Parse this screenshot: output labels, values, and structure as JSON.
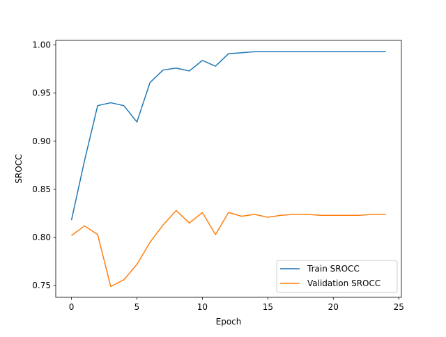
{
  "chart_data": {
    "type": "line",
    "title": "",
    "xlabel": "Epoch",
    "ylabel": "SROCC",
    "xlim": [
      -1.2,
      25.2
    ],
    "ylim": [
      0.7378,
      1.0048
    ],
    "xticks": [
      0,
      5,
      10,
      15,
      20,
      25
    ],
    "yticks": [
      0.75,
      0.8,
      0.85,
      0.9,
      0.95,
      1.0
    ],
    "xtick_labels": [
      "0",
      "5",
      "10",
      "15",
      "20",
      "25"
    ],
    "ytick_labels": [
      "0.75",
      "0.80",
      "0.85",
      "0.90",
      "0.95",
      "1.00"
    ],
    "grid": false,
    "legend_position": "lower-right",
    "x": [
      0,
      1,
      2,
      3,
      4,
      5,
      6,
      7,
      8,
      9,
      10,
      11,
      12,
      13,
      14,
      15,
      16,
      17,
      18,
      19,
      20,
      21,
      22,
      23,
      24
    ],
    "series": [
      {
        "name": "Train SROCC",
        "color": "#1f77b4",
        "values": [
          0.818,
          0.88,
          0.937,
          0.94,
          0.937,
          0.92,
          0.961,
          0.974,
          0.976,
          0.973,
          0.984,
          0.978,
          0.991,
          0.992,
          0.993,
          0.993,
          0.993,
          0.993,
          0.993,
          0.993,
          0.993,
          0.993,
          0.993,
          0.993,
          0.993
        ]
      },
      {
        "name": "Validation SROCC",
        "color": "#ff7f0e",
        "values": [
          0.802,
          0.812,
          0.803,
          0.749,
          0.756,
          0.772,
          0.795,
          0.813,
          0.828,
          0.815,
          0.826,
          0.803,
          0.826,
          0.822,
          0.824,
          0.821,
          0.823,
          0.824,
          0.824,
          0.823,
          0.823,
          0.823,
          0.823,
          0.824,
          0.824
        ]
      }
    ]
  }
}
